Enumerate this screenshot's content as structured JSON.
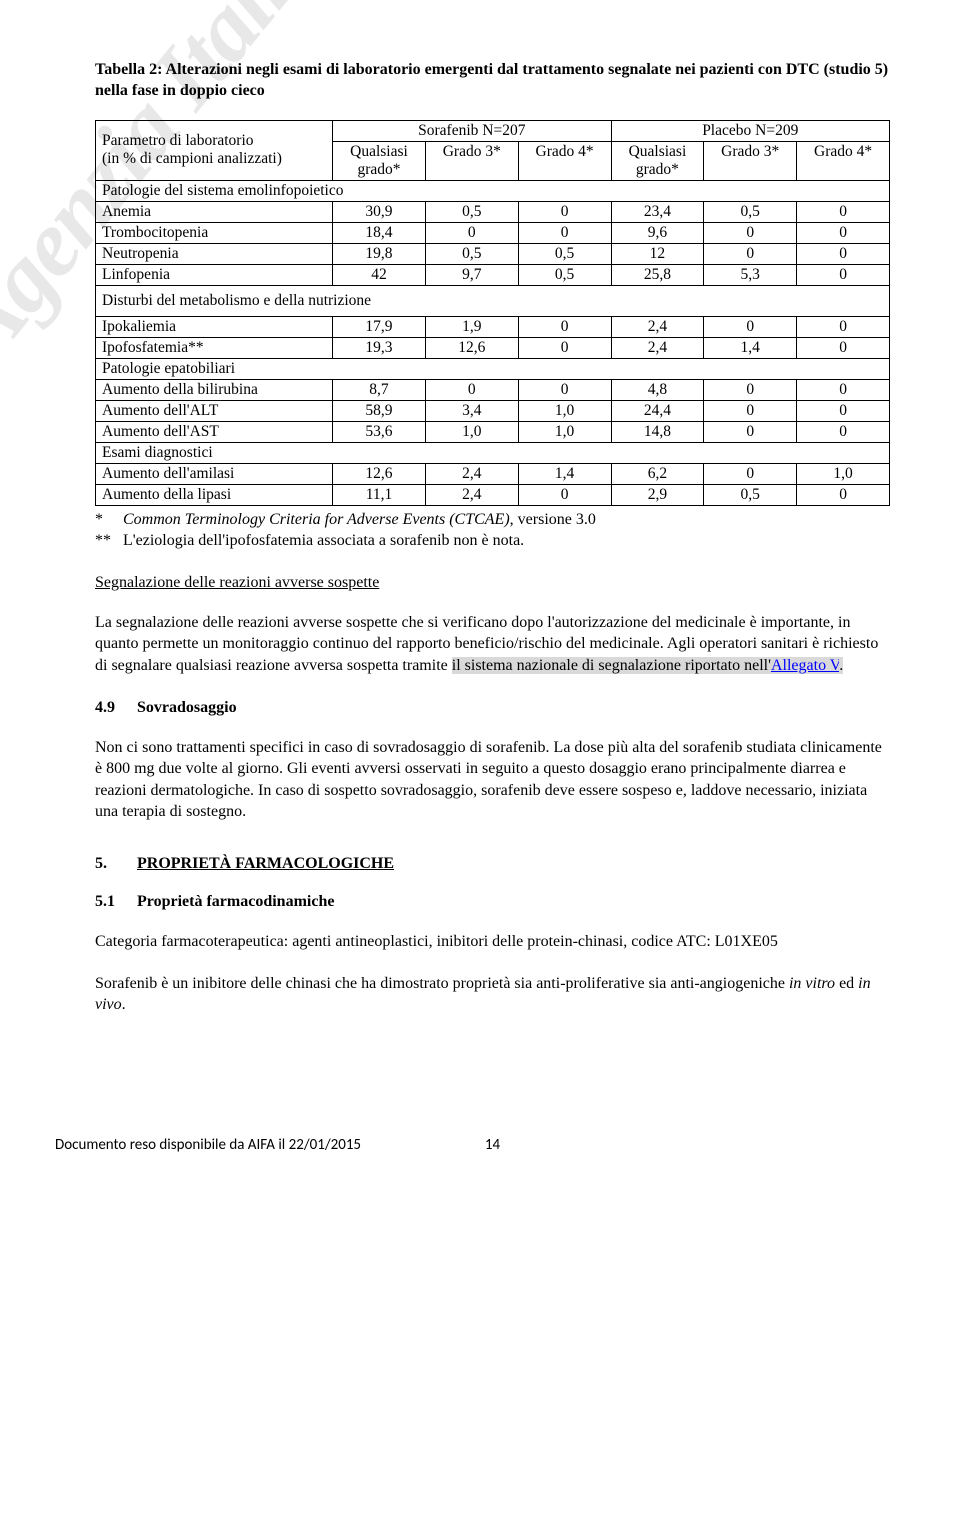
{
  "title": "Tabella 2: Alterazioni negli esami di laboratorio emergenti dal trattamento segnalate nei pazienti con DTC (studio 5) nella fase in doppio cieco",
  "table": {
    "param_label_l1": "Parametro di laboratorio",
    "param_label_l2": "(in % di campioni analizzati)",
    "arm1": "Sorafenib N=207",
    "arm2": "Placebo N=209",
    "col_q": "Qualsiasi grado*",
    "col_g3": "Grado 3*",
    "col_g4": "Grado 4*",
    "sec1": "Patologie del sistema emolinfopoietico",
    "rows1": [
      {
        "l": "Anemia",
        "v": [
          "30,9",
          "0,5",
          "0",
          "23,4",
          "0,5",
          "0"
        ]
      },
      {
        "l": "Trombocitopenia",
        "v": [
          "18,4",
          "0",
          "0",
          "9,6",
          "0",
          "0"
        ]
      },
      {
        "l": "Neutropenia",
        "v": [
          "19,8",
          "0,5",
          "0,5",
          "12",
          "0",
          "0"
        ]
      },
      {
        "l": "Linfopenia",
        "v": [
          "42",
          "9,7",
          "0,5",
          "25,8",
          "5,3",
          "0"
        ]
      }
    ],
    "sec2": "Disturbi del metabolismo e della nutrizione",
    "rows2": [
      {
        "l": "Ipokaliemia",
        "v": [
          "17,9",
          "1,9",
          "0",
          "2,4",
          "0",
          "0"
        ]
      },
      {
        "l": "Ipofosfatemia**",
        "v": [
          "19,3",
          "12,6",
          "0",
          "2,4",
          "1,4",
          "0"
        ]
      }
    ],
    "sec3": "Patologie epatobiliari",
    "rows3": [
      {
        "l": "Aumento della bilirubina",
        "v": [
          "8,7",
          "0",
          "0",
          "4,8",
          "0",
          "0"
        ]
      },
      {
        "l": "Aumento dell'ALT",
        "v": [
          "58,9",
          "3,4",
          "1,0",
          "24,4",
          "0",
          "0"
        ]
      },
      {
        "l": "Aumento dell'AST",
        "v": [
          "53,6",
          "1,0",
          "1,0",
          "14,8",
          "0",
          "0"
        ]
      }
    ],
    "sec4": "Esami diagnostici",
    "rows4": [
      {
        "l": "Aumento dell'amilasi",
        "v": [
          "12,6",
          "2,4",
          "1,4",
          "6,2",
          "0",
          "1,0"
        ]
      },
      {
        "l": "Aumento della lipasi",
        "v": [
          "11,1",
          "2,4",
          "0",
          "2,9",
          "0,5",
          "0"
        ]
      }
    ]
  },
  "fn1_sym": "*",
  "fn1_a": "Common Terminology Criteria for Adverse Events (CTCAE)",
  "fn1_b": ", versione 3.0",
  "fn2_sym": "**",
  "fn2": "L'eziologia dell'ipofosfatemia associata a sorafenib non è nota.",
  "subhead": "Segnalazione delle reazioni avverse sospette",
  "para1a": "La segnalazione delle reazioni avverse sospette che si verificano dopo l'autorizzazione del medicinale è importante, in quanto permette un monitoraggio continuo del rapporto beneficio/rischio del medicinale. Agli operatori sanitari è richiesto di segnalare qualsiasi reazione avversa sospetta tramite ",
  "para1b": "il sistema nazionale di segnalazione riportato nell'",
  "para1_link": "Allegato V",
  "para1_dot": ".",
  "sec49_num": "4.9",
  "sec49_title": "Sovradosaggio",
  "para2": "Non ci sono trattamenti specifici in caso di sovradosaggio di sorafenib. La dose più alta del sorafenib studiata clinicamente è 800 mg due volte al giorno. Gli eventi avversi osservati in seguito a questo dosaggio erano principalmente diarrea e reazioni dermatologiche. In caso di sospetto sovradosaggio, sorafenib deve essere sospeso e, laddove necessario, iniziata una terapia di sostegno.",
  "sec5_num": "5.",
  "sec5_title": "PROPRIETÀ FARMACOLOGICHE",
  "sec51_num": "5.1",
  "sec51_title": "Proprietà farmacodinamiche",
  "para3": "Categoria farmacoterapeutica: agenti antineoplastici, inibitori delle protein-chinasi, codice ATC: L01XE05",
  "para4a": "Sorafenib è un inibitore delle chinasi che ha dimostrato proprietà sia anti-proliferative sia anti-angiogeniche ",
  "para4b": "in vitro",
  "para4c": " ed ",
  "para4d": "in vivo",
  "para4e": ".",
  "watermark": "Agenzia Italiana del Farmaco",
  "footer_left": "Documento reso disponibile da AIFA il 22/01/2015",
  "footer_page": "14"
}
